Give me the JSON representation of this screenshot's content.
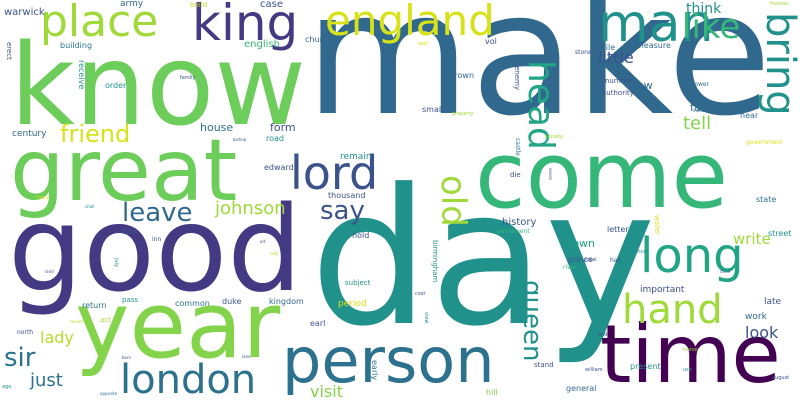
{
  "palette": {
    "purple": "#440154",
    "indigo": "#443a83",
    "blue": "#31688e",
    "teal": "#21918c",
    "green": "#35b779",
    "lime": "#6ccd5a",
    "yellow": "#d8e219"
  },
  "words": [
    {
      "text": "make",
      "color": "#31688e"
    },
    {
      "text": "know",
      "color": "#6ccd5a"
    },
    {
      "text": "day",
      "color": "#21918c"
    },
    {
      "text": "good",
      "color": "#443a83"
    },
    {
      "text": "come",
      "color": "#35b779"
    },
    {
      "text": "great",
      "color": "#6ccd5a"
    },
    {
      "text": "year",
      "color": "#84d44b"
    },
    {
      "text": "time",
      "color": "#440154"
    },
    {
      "text": "person",
      "color": "#2c728e"
    },
    {
      "text": "king",
      "color": "#443a83"
    },
    {
      "text": "england",
      "color": "#d8e219"
    },
    {
      "text": "place",
      "color": "#a0da39"
    },
    {
      "text": "man",
      "color": "#21918c"
    },
    {
      "text": "long",
      "color": "#21a585"
    },
    {
      "text": "lord",
      "color": "#3b528b"
    },
    {
      "text": "london",
      "color": "#2c728e"
    },
    {
      "text": "hand",
      "color": "#a0da39"
    },
    {
      "text": "head",
      "color": "#21a585"
    },
    {
      "text": "bring",
      "color": "#21918c"
    },
    {
      "text": "like",
      "color": "#35b779"
    },
    {
      "text": "old",
      "color": "#a0da39"
    },
    {
      "text": "queen",
      "color": "#21918c"
    },
    {
      "text": "friend",
      "color": "#d8e219"
    },
    {
      "text": "leave",
      "color": "#31688e"
    },
    {
      "text": "say",
      "color": "#3b528b"
    },
    {
      "text": "sir",
      "color": "#2c728e"
    },
    {
      "text": "johnson",
      "color": "#a0da39"
    },
    {
      "text": "lady",
      "color": "#b5de2b"
    },
    {
      "text": "just",
      "color": "#2c728e"
    },
    {
      "text": "visit",
      "color": "#84d44b"
    },
    {
      "text": "little",
      "color": "#3b528b"
    },
    {
      "text": "tell",
      "color": "#84d44b"
    },
    {
      "text": "write",
      "color": "#a0da39"
    },
    {
      "text": "think",
      "color": "#21918c"
    },
    {
      "text": "look",
      "color": "#3b528b"
    },
    {
      "text": "warwick",
      "color": "#3b528b"
    },
    {
      "text": "army",
      "color": "#31688e"
    },
    {
      "text": "build",
      "color": "#bddf26"
    },
    {
      "text": "case",
      "color": "#3b528b"
    },
    {
      "text": "english",
      "color": "#35b779"
    },
    {
      "text": "church",
      "color": "#31688e"
    },
    {
      "text": "vol",
      "color": "#3b528b"
    },
    {
      "text": "mile",
      "color": "#31688e"
    },
    {
      "text": "measure",
      "color": "#31688e"
    },
    {
      "text": "building",
      "color": "#2c728e"
    },
    {
      "text": "order",
      "color": "#21918c"
    },
    {
      "text": "family",
      "color": "#3b528b"
    },
    {
      "text": "crown",
      "color": "#31688e"
    },
    {
      "text": "small",
      "color": "#3b528b"
    },
    {
      "text": "number",
      "color": "#3b528b"
    },
    {
      "text": "authority",
      "color": "#3b528b"
    },
    {
      "text": "new",
      "color": "#31688e"
    },
    {
      "text": "stone",
      "color": "#3b528b"
    },
    {
      "text": "soon",
      "color": "#2c728e"
    },
    {
      "text": "tower",
      "color": "#31688e"
    },
    {
      "text": "fact",
      "color": "#2c728e"
    },
    {
      "text": "near",
      "color": "#2c728e"
    },
    {
      "text": "century",
      "color": "#31688e"
    },
    {
      "text": "house",
      "color": "#2c728e"
    },
    {
      "text": "form",
      "color": "#3b528b"
    },
    {
      "text": "road",
      "color": "#21918c"
    },
    {
      "text": "remain",
      "color": "#21918c"
    },
    {
      "text": "edward",
      "color": "#3b528b"
    },
    {
      "text": "thousand",
      "color": "#3b528b"
    },
    {
      "text": "history",
      "color": "#3b528b"
    },
    {
      "text": "die",
      "color": "#3b528b"
    },
    {
      "text": "letter",
      "color": "#3b528b"
    },
    {
      "text": "state",
      "color": "#2c728e"
    },
    {
      "text": "street",
      "color": "#21918c"
    },
    {
      "text": "parliament",
      "color": "#35b779"
    },
    {
      "text": "town",
      "color": "#21a585"
    },
    {
      "text": "foot",
      "color": "#3b528b"
    },
    {
      "text": "hold",
      "color": "#3b528b"
    },
    {
      "text": "prince",
      "color": "#3b528b"
    },
    {
      "text": "subject",
      "color": "#21918c"
    },
    {
      "text": "important",
      "color": "#3b528b"
    },
    {
      "text": "late",
      "color": "#3b528b"
    },
    {
      "text": "return",
      "color": "#2c728e"
    },
    {
      "text": "pass",
      "color": "#21918c"
    },
    {
      "text": "common",
      "color": "#2c728e"
    },
    {
      "text": "duke",
      "color": "#3b528b"
    },
    {
      "text": "kingdom",
      "color": "#31688e"
    },
    {
      "text": "period",
      "color": "#d8e219"
    },
    {
      "text": "work",
      "color": "#31688e"
    },
    {
      "text": "act",
      "color": "#a0da39"
    },
    {
      "text": "earl",
      "color": "#3b528b"
    },
    {
      "text": "north",
      "color": "#3b528b"
    },
    {
      "text": "cost",
      "color": "#3b528b"
    },
    {
      "text": "early",
      "color": "#2c728e"
    },
    {
      "text": "present",
      "color": "#21918c"
    },
    {
      "text": "stand",
      "color": "#3b528b"
    },
    {
      "text": "general",
      "color": "#31688e"
    },
    {
      "text": "william",
      "color": "#3b528b"
    },
    {
      "text": "hill",
      "color": "#84d44b"
    },
    {
      "text": "river",
      "color": "#35b779"
    },
    {
      "text": "water",
      "color": "#d8e219"
    },
    {
      "text": "school",
      "color": "#21918c"
    },
    {
      "text": "local",
      "color": "#3b528b"
    },
    {
      "text": "hall",
      "color": "#3b528b"
    },
    {
      "text": "inhabitant",
      "color": "#31688e"
    },
    {
      "text": "property",
      "color": "#a0da39"
    },
    {
      "text": "society",
      "color": "#a0da39"
    },
    {
      "text": "enemy",
      "color": "#3b528b"
    },
    {
      "text": "castle",
      "color": "#31688e"
    },
    {
      "text": "anson",
      "color": "#3b528b"
    },
    {
      "text": "birmingham",
      "color": "#21918c"
    },
    {
      "text": "government",
      "color": "#d8e219"
    },
    {
      "text": "august",
      "color": "#3b528b"
    },
    {
      "text": "thomas",
      "color": "#a0da39"
    },
    {
      "text": "wall",
      "color": "#d8e219"
    },
    {
      "text": "receive",
      "color": "#21918c"
    },
    {
      "text": "erect",
      "color": "#3b528b"
    },
    {
      "text": "bishop",
      "color": "#3b528b"
    },
    {
      "text": "shall",
      "color": "#21918c"
    },
    {
      "text": "land",
      "color": "#3b528b"
    },
    {
      "text": "inn",
      "color": "#3b528b"
    },
    {
      "text": "july",
      "color": "#21918c"
    },
    {
      "text": "lane",
      "color": "#3b528b"
    },
    {
      "text": "age",
      "color": "#21918c"
    },
    {
      "text": "opposite",
      "color": "#2c728e"
    },
    {
      "text": "manor",
      "color": "#a0da39"
    },
    {
      "text": "use",
      "color": "#21918c"
    },
    {
      "text": "tenant",
      "color": "#b5de2b"
    },
    {
      "text": "till",
      "color": "#21918c"
    },
    {
      "text": "end",
      "color": "#3b528b"
    },
    {
      "text": "close",
      "color": "#3b528b"
    },
    {
      "text": "art",
      "color": "#3b528b"
    },
    {
      "text": "born",
      "color": "#3b528b"
    },
    {
      "text": "lady",
      "color": "#b5de2b"
    },
    {
      "text": "mary",
      "color": "#d8e219"
    },
    {
      "text": "view",
      "color": "#21918c"
    }
  ]
}
